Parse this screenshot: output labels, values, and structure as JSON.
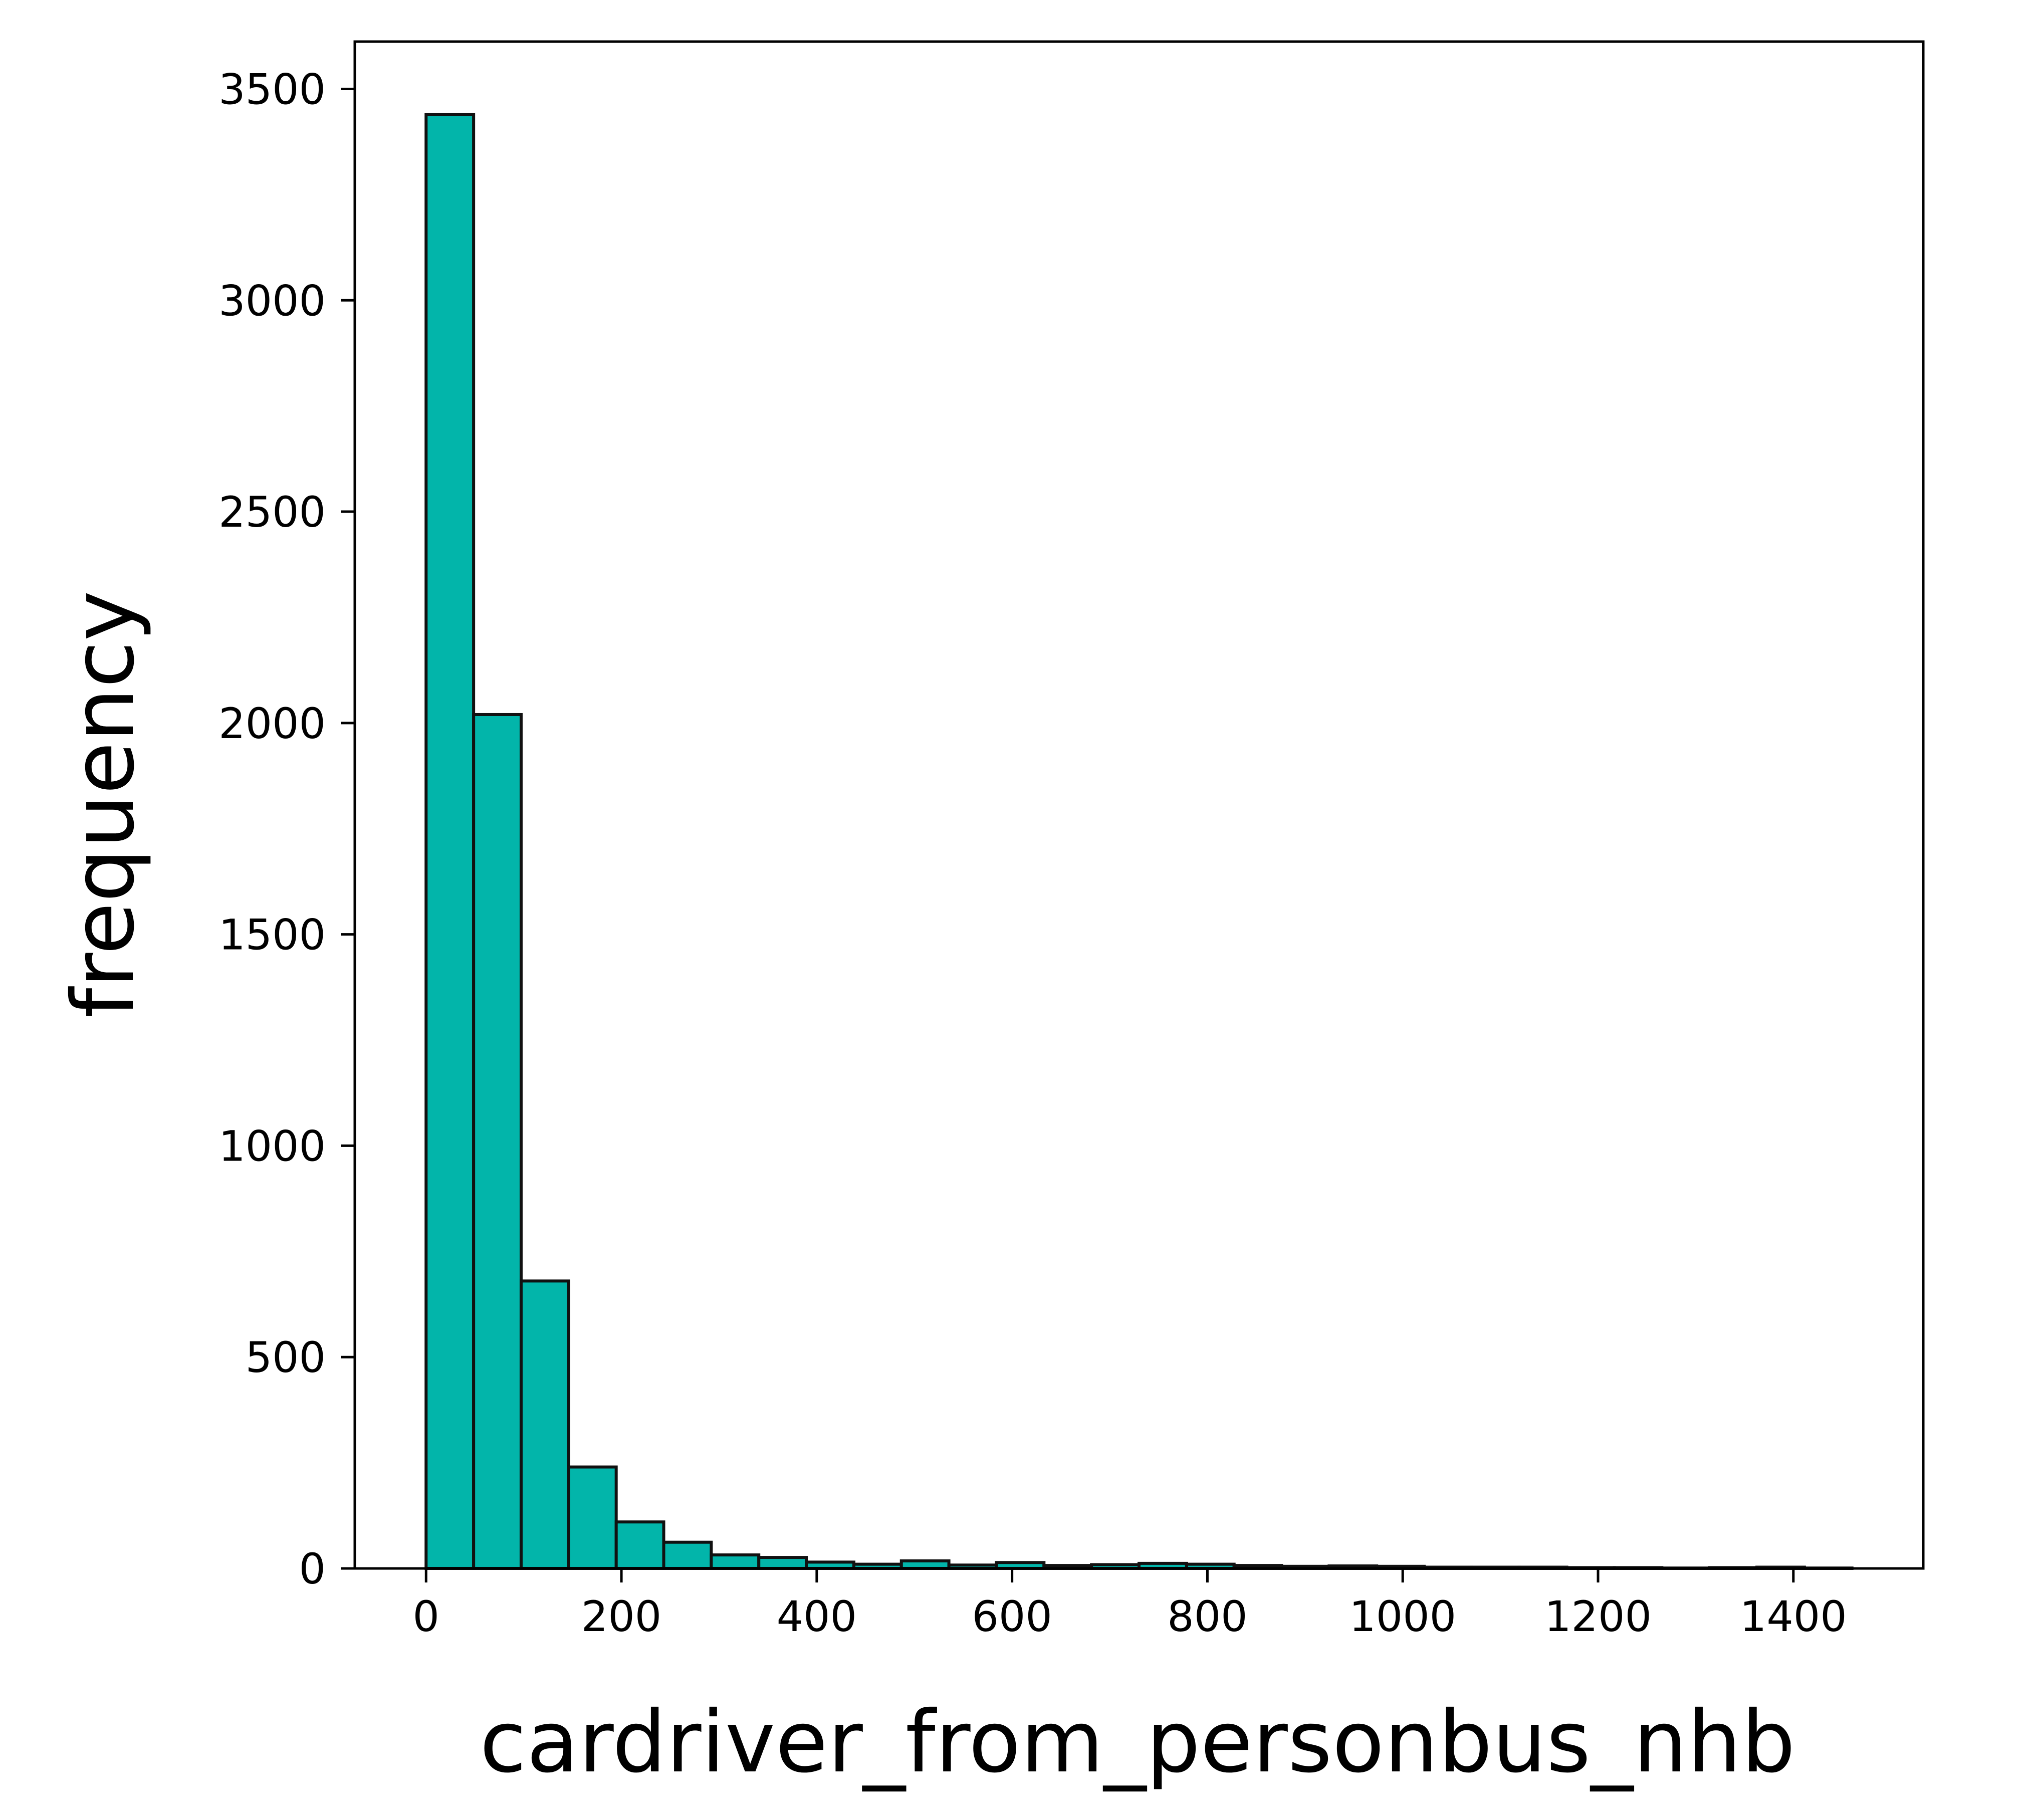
{
  "chart_data": {
    "type": "bar",
    "subtype": "histogram",
    "title": "",
    "xlabel": "cardriver_from_personbus_nhb",
    "ylabel": "frequency",
    "bin_width": 48.67,
    "x_start": 0,
    "bins": [
      {
        "x0": 0,
        "x1": 48.67,
        "value": 3440
      },
      {
        "x0": 48.67,
        "x1": 97.33,
        "value": 2020
      },
      {
        "x0": 97.33,
        "x1": 146,
        "value": 680
      },
      {
        "x0": 146,
        "x1": 194.67,
        "value": 240
      },
      {
        "x0": 194.67,
        "x1": 243.33,
        "value": 110
      },
      {
        "x0": 243.33,
        "x1": 292,
        "value": 62
      },
      {
        "x0": 292,
        "x1": 340.67,
        "value": 32
      },
      {
        "x0": 340.67,
        "x1": 389.33,
        "value": 26
      },
      {
        "x0": 389.33,
        "x1": 438,
        "value": 15
      },
      {
        "x0": 438,
        "x1": 486.67,
        "value": 10
      },
      {
        "x0": 486.67,
        "x1": 535.33,
        "value": 18
      },
      {
        "x0": 535.33,
        "x1": 584,
        "value": 8
      },
      {
        "x0": 584,
        "x1": 632.67,
        "value": 14
      },
      {
        "x0": 632.67,
        "x1": 681.33,
        "value": 7
      },
      {
        "x0": 681.33,
        "x1": 730,
        "value": 9
      },
      {
        "x0": 730,
        "x1": 778.67,
        "value": 12
      },
      {
        "x0": 778.67,
        "x1": 827.33,
        "value": 10
      },
      {
        "x0": 827.33,
        "x1": 876,
        "value": 7
      },
      {
        "x0": 876,
        "x1": 924.67,
        "value": 5
      },
      {
        "x0": 924.67,
        "x1": 973.33,
        "value": 6
      },
      {
        "x0": 973.33,
        "x1": 1022,
        "value": 5
      },
      {
        "x0": 1022,
        "x1": 1070.67,
        "value": 3
      },
      {
        "x0": 1070.67,
        "x1": 1119.33,
        "value": 3
      },
      {
        "x0": 1119.33,
        "x1": 1168,
        "value": 3
      },
      {
        "x0": 1168,
        "x1": 1216.67,
        "value": 2
      },
      {
        "x0": 1216.67,
        "x1": 1265.33,
        "value": 2
      },
      {
        "x0": 1265.33,
        "x1": 1314,
        "value": 1
      },
      {
        "x0": 1314,
        "x1": 1362.67,
        "value": 2
      },
      {
        "x0": 1362.67,
        "x1": 1411.33,
        "value": 3
      },
      {
        "x0": 1411.33,
        "x1": 1460,
        "value": 1
      }
    ],
    "xlim": [
      -73,
      1533
    ],
    "ylim": [
      0,
      3612
    ],
    "xticks": [
      0,
      200,
      400,
      600,
      800,
      1000,
      1200,
      1400
    ],
    "xtick_labels": [
      "0",
      "200",
      "400",
      "600",
      "800",
      "1000",
      "1200",
      "1400"
    ],
    "yticks": [
      0,
      500,
      1000,
      1500,
      2000,
      2500,
      3000,
      3500
    ],
    "ytick_labels": [
      "0",
      "500",
      "1000",
      "1500",
      "2000",
      "2500",
      "3000",
      "3500"
    ],
    "grid": false,
    "legend": "none",
    "colors": {
      "bar_fill": "#02b5aa",
      "bar_edge": "#111111",
      "axis": "#000000"
    }
  }
}
